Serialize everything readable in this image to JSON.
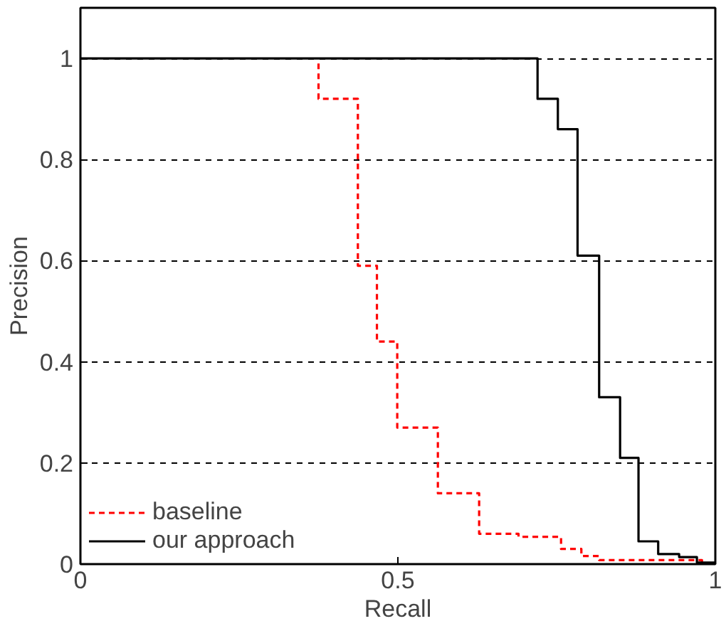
{
  "chart_data": {
    "type": "step",
    "xlabel": "Recall",
    "ylabel": "Precision",
    "xlim": [
      0,
      1
    ],
    "ylim": [
      0,
      1.1
    ],
    "xticks": [
      0,
      0.5,
      1
    ],
    "yticks": [
      0,
      0.2,
      0.4,
      0.6,
      0.8,
      1
    ],
    "grid": "y",
    "legend": "bottom left",
    "marker": "none",
    "series": [
      {
        "name": "baseline",
        "color": "#ff0000",
        "line_style": "dashed",
        "x": [
          0.375,
          0.375,
          0.437,
          0.467,
          0.499,
          0.563,
          0.628,
          0.69,
          0.757,
          0.789,
          0.817,
          0.979
        ],
        "values": [
          0.99,
          0.92,
          0.59,
          0.44,
          0.27,
          0.14,
          0.06,
          0.054,
          0.03,
          0.016,
          0.008,
          0
        ]
      },
      {
        "name": "our approach",
        "color": "#000000",
        "line_style": "solid",
        "x": [
          0,
          0.72,
          0.752,
          0.783,
          0.817,
          0.85,
          0.879,
          0.91,
          0.943,
          0.971,
          1.0
        ],
        "values": [
          1,
          0.92,
          0.86,
          0.61,
          0.33,
          0.21,
          0.045,
          0.02,
          0.014,
          0.003,
          0
        ]
      }
    ]
  }
}
